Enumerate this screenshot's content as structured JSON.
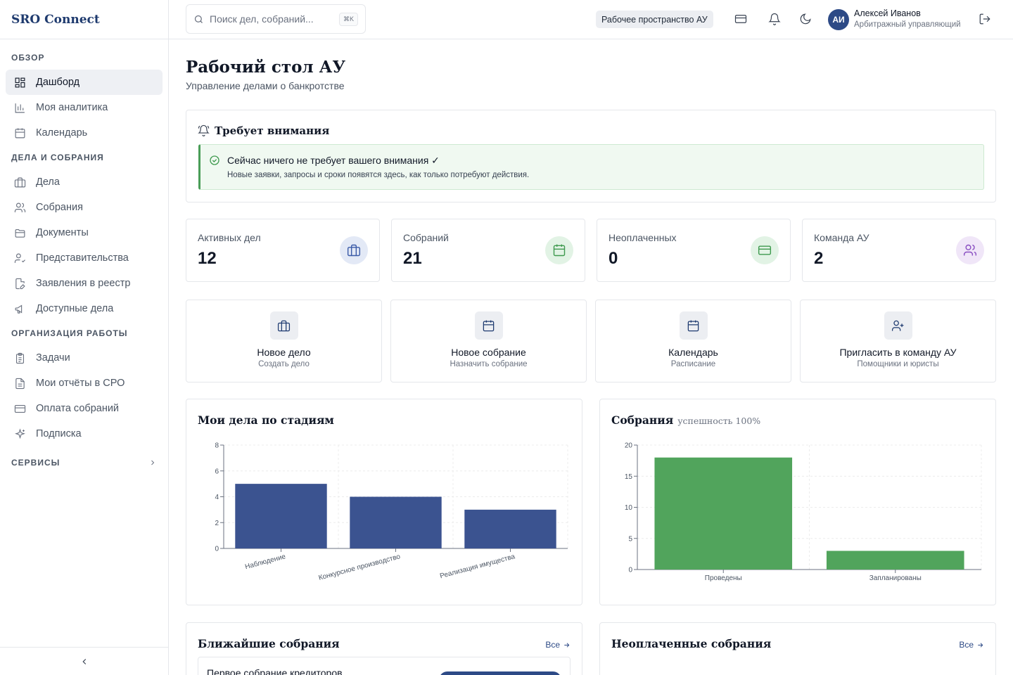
{
  "brand": "SRO Connect",
  "sidebar": {
    "sections": [
      {
        "title": "ОБЗОР",
        "items": [
          {
            "label": "Дашборд",
            "icon": "dashboard-icon",
            "active": true
          },
          {
            "label": "Моя аналитика",
            "icon": "analytics-icon"
          },
          {
            "label": "Календарь",
            "icon": "calendar-icon"
          }
        ]
      },
      {
        "title": "ДЕЛА И СОБРАНИЯ",
        "items": [
          {
            "label": "Дела",
            "icon": "briefcase-icon"
          },
          {
            "label": "Собрания",
            "icon": "users-icon"
          },
          {
            "label": "Документы",
            "icon": "folder-icon"
          },
          {
            "label": "Представительства",
            "icon": "user-check-icon"
          },
          {
            "label": "Заявления в реестр",
            "icon": "file-edit-icon"
          },
          {
            "label": "Доступные дела",
            "icon": "megaphone-icon"
          }
        ]
      },
      {
        "title": "ОРГАНИЗАЦИЯ РАБОТЫ",
        "items": [
          {
            "label": "Задачи",
            "icon": "clipboard-icon"
          },
          {
            "label": "Мои отчёты в СРО",
            "icon": "report-icon"
          },
          {
            "label": "Оплата собраний",
            "icon": "credit-card-icon"
          },
          {
            "label": "Подписка",
            "icon": "sparkles-icon"
          }
        ]
      }
    ],
    "services_label": "СЕРВИСЫ"
  },
  "header": {
    "search_placeholder": "Поиск дел, собраний...",
    "search_shortcut": "⌘K",
    "workspace": "Рабочее пространство АУ",
    "user_initials": "АИ",
    "user_name": "Алексей Иванов",
    "user_role": "Арбитражный управляющий"
  },
  "page": {
    "title": "Рабочий стол АУ",
    "subtitle": "Управление делами о банкротстве"
  },
  "attention": {
    "title": "Требует внимания",
    "alert_title": "Сейчас ничего не требует вашего внимания ✓",
    "alert_text": "Новые заявки, запросы и сроки появятся здесь, как только потребуют действия."
  },
  "stats": [
    {
      "label": "Активных дел",
      "value": "12",
      "icon": "briefcase-icon",
      "color": "#3b5ba8",
      "bg": "#e3e9f6"
    },
    {
      "label": "Собраний",
      "value": "21",
      "icon": "calendar-icon",
      "color": "#3f9a4f",
      "bg": "#e2f3e5"
    },
    {
      "label": "Неоплаченных",
      "value": "0",
      "icon": "credit-card-icon",
      "color": "#3f9a4f",
      "bg": "#e2f3e5"
    },
    {
      "label": "Команда АУ",
      "value": "2",
      "icon": "users-icon",
      "color": "#8a4fc2",
      "bg": "#f0e6f8"
    }
  ],
  "quick_actions": [
    {
      "title": "Новое дело",
      "subtitle": "Создать дело",
      "icon": "briefcase-icon"
    },
    {
      "title": "Новое собрание",
      "subtitle": "Назначить собрание",
      "icon": "calendar-icon"
    },
    {
      "title": "Календарь",
      "subtitle": "Расписание",
      "icon": "calendar-icon"
    },
    {
      "title": "Пригласить в команду АУ",
      "subtitle": "Помощники и юристы",
      "icon": "user-plus-icon"
    }
  ],
  "chart_data": [
    {
      "type": "bar",
      "title": "Мои дела по стадиям",
      "categories": [
        "Наблюдение",
        "Конкурсное производство",
        "Реализация имущества"
      ],
      "values": [
        5,
        4,
        3
      ],
      "ylim": [
        0,
        8
      ],
      "yticks": [
        0,
        2,
        4,
        6,
        8
      ],
      "color": "#3b5390",
      "grid": true
    },
    {
      "type": "bar",
      "title": "Собрания",
      "subtitle": "успешность 100%",
      "categories": [
        "Проведены",
        "Запланированы"
      ],
      "values": [
        18,
        3
      ],
      "ylim": [
        0,
        20
      ],
      "yticks": [
        0,
        5,
        10,
        15,
        20
      ],
      "color": "#51a45c",
      "grid": true
    }
  ],
  "upcoming": {
    "title": "Ближайшие собрания",
    "all_label": "Все",
    "first_item": "Первое собрание кредиторов"
  },
  "unpaid": {
    "title": "Неоплаченные собрания",
    "all_label": "Все"
  }
}
